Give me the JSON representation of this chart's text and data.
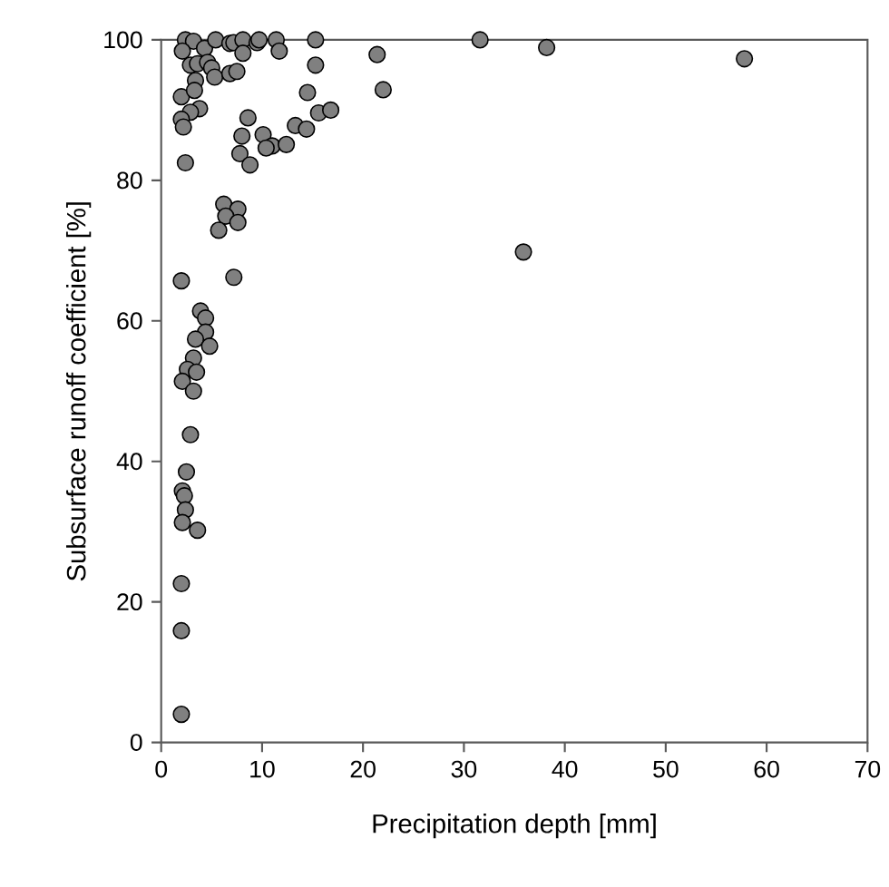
{
  "chart_data": {
    "type": "scatter",
    "xlabel": "Precipitation depth [mm]",
    "ylabel": "Subsurface runoff coefficient [%]",
    "xlim": [
      0,
      70
    ],
    "ylim": [
      0,
      100
    ],
    "xticks": [
      0,
      10,
      20,
      30,
      40,
      50,
      60,
      70
    ],
    "yticks": [
      0,
      20,
      40,
      60,
      80,
      100
    ],
    "grid": false,
    "marker": "circle",
    "series": [
      {
        "color": "#808080",
        "x": [
          21.4,
          22.0,
          31.6,
          38.2,
          57.8,
          35.9,
          2.4,
          3.2,
          2.1,
          4.3,
          5.4,
          6.8,
          7.2,
          8.1,
          9.5,
          9.7,
          11.4,
          11.7,
          8.1,
          15.3,
          2.9,
          3.6,
          4.6,
          5.0,
          5.3,
          6.8,
          7.5,
          15.3,
          2.0,
          3.4,
          3.3,
          14.5,
          3.8,
          2.9,
          2.0,
          2.2,
          8.6,
          15.6,
          16.8,
          13.3,
          14.4,
          8.0,
          10.1,
          11.0,
          12.4,
          10.4,
          7.8,
          8.8,
          2.4,
          6.2,
          7.6,
          6.4,
          7.6,
          5.7,
          2.0,
          7.2,
          3.9,
          4.4,
          4.4,
          3.4,
          4.8,
          3.2,
          2.6,
          3.5,
          2.1,
          3.2,
          2.9,
          2.5,
          2.1,
          2.3,
          2.4,
          2.1,
          3.6,
          2.0,
          2.0,
          2.0
        ],
        "values": [
          97.9,
          92.9,
          100,
          98.9,
          97.3,
          69.8,
          100,
          99.8,
          98.4,
          98.8,
          100,
          99.5,
          99.6,
          100,
          99.6,
          100,
          100,
          98.4,
          98.1,
          100,
          96.4,
          96.6,
          96.8,
          96.0,
          94.7,
          95.2,
          95.5,
          96.4,
          91.9,
          94.2,
          92.8,
          92.5,
          90.2,
          89.7,
          88.7,
          87.6,
          88.9,
          89.6,
          90.0,
          87.8,
          87.3,
          86.3,
          86.5,
          84.9,
          85.1,
          84.6,
          83.8,
          82.2,
          82.5,
          76.6,
          75.9,
          74.9,
          74.0,
          72.9,
          65.7,
          66.2,
          61.4,
          60.4,
          58.4,
          57.4,
          56.4,
          54.7,
          53.1,
          52.7,
          51.4,
          50.0,
          43.8,
          38.5,
          35.8,
          35.1,
          33.1,
          31.3,
          30.2,
          22.6,
          15.9,
          4.0
        ]
      }
    ]
  }
}
